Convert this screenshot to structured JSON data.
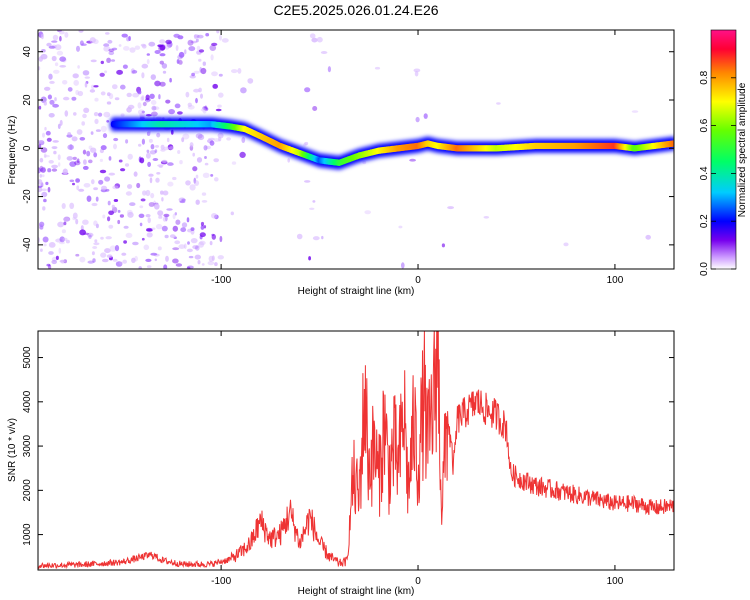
{
  "figure": {
    "title": "C2E5.2025.026.01.24.E26"
  },
  "chart_data": [
    {
      "type": "heatmap",
      "xlabel": "Height of straight line (km)",
      "ylabel": "Frequency (Hz)",
      "xlim": [
        -193,
        130
      ],
      "ylim": [
        -50,
        49
      ],
      "xticks": [
        -100,
        0,
        100
      ],
      "yticks": [
        -40,
        -20,
        0,
        20,
        40
      ],
      "grid": false,
      "colormap": [
        "#cc99ff",
        "#7700ee",
        "#0000ff",
        "#00ccff",
        "#00ff66",
        "#66ff00",
        "#ffff00",
        "#ff8800",
        "#ff0033"
      ],
      "colorbar": {
        "label": "Normalized spectral amplitude",
        "range": [
          0,
          1
        ],
        "ticks": [
          0,
          0.2,
          0.4,
          0.6,
          0.8
        ]
      },
      "ridge": {
        "x": [
          -155,
          -130,
          -105,
          -95,
          -88,
          -80,
          -70,
          -60,
          -50,
          -40,
          -30,
          -20,
          -10,
          0,
          5,
          10,
          20,
          40,
          60,
          80,
          100,
          110,
          130
        ],
        "frequency": [
          10,
          10,
          10,
          9,
          8,
          5,
          1,
          -2,
          -5,
          -6,
          -3,
          -1,
          0,
          1,
          2,
          1,
          0,
          0,
          1,
          1,
          1,
          0,
          2
        ],
        "amplitude": [
          0.25,
          0.45,
          0.35,
          0.55,
          0.75,
          0.8,
          0.85,
          0.7,
          0.3,
          0.55,
          0.65,
          0.75,
          0.85,
          0.9,
          0.8,
          0.75,
          0.9,
          0.7,
          0.8,
          0.85,
          0.95,
          0.6,
          0.9
        ]
      }
    },
    {
      "type": "line",
      "xlabel": "Height of straight line (km)",
      "ylabel": "SNR (10 * v/v)",
      "xlim": [
        -193,
        130
      ],
      "ylim": [
        200,
        5600
      ],
      "xticks": [
        -100,
        0,
        100
      ],
      "yticks": [
        1000,
        2000,
        3000,
        4000,
        5000
      ],
      "grid": false,
      "color": "#ee3333",
      "series": [
        {
          "x": [
            -193,
            -170,
            -150,
            -135,
            -130,
            -120,
            -105,
            -95,
            -90,
            -85,
            -80,
            -75,
            -70,
            -65,
            -60,
            -55,
            -50,
            -45,
            -40,
            -36,
            -33,
            -30,
            -27,
            -25,
            -22,
            -20,
            -17,
            -15,
            -12,
            -10,
            -7,
            -5,
            -2,
            0,
            3,
            5,
            8,
            10,
            12,
            15,
            18,
            20,
            25,
            30,
            35,
            40,
            45,
            47,
            50,
            60,
            70,
            80,
            90,
            100,
            110,
            120,
            130
          ],
          "y": [
            300,
            320,
            380,
            550,
            420,
            330,
            330,
            450,
            600,
            800,
            1300,
            900,
            1000,
            1500,
            800,
            1400,
            800,
            500,
            350,
            400,
            2300,
            1800,
            4200,
            2500,
            3000,
            2200,
            3600,
            2400,
            3000,
            2500,
            3800,
            2000,
            3500,
            2500,
            4100,
            3000,
            4000,
            5300,
            1600,
            3700,
            2500,
            3600,
            3800,
            4000,
            3800,
            3700,
            3400,
            2400,
            2300,
            2100,
            2000,
            1900,
            1800,
            1700,
            1700,
            1600,
            1650
          ]
        }
      ]
    }
  ]
}
